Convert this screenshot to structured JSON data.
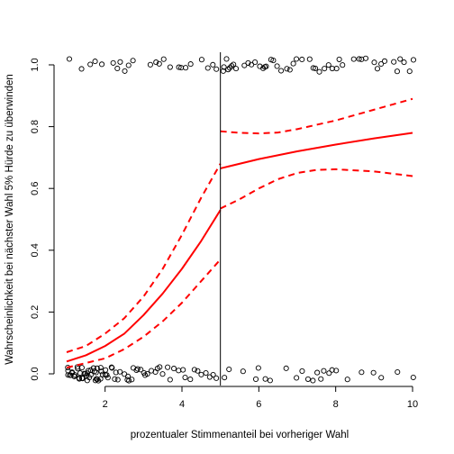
{
  "chart_data": {
    "type": "line",
    "title": "",
    "xlabel": "prozentualer Stimmenanteil bei vorheriger Wahl",
    "ylabel": "Wahrscheinlichkeit bei nächster Wahl 5% Hürde zu überwinden",
    "xlim": [
      1,
      10
    ],
    "ylim": [
      0,
      1
    ],
    "x_ticks": [
      2,
      4,
      6,
      8,
      10
    ],
    "y_ticks": [
      0.0,
      0.2,
      0.4,
      0.6,
      0.8,
      1.0
    ],
    "y_tick_labels": [
      "0.0",
      "0.2",
      "0.4",
      "0.6",
      "0.8",
      "1.0"
    ],
    "threshold_x": 5,
    "grid": false,
    "series": [
      {
        "role": "fit-left",
        "style": "solid",
        "color": "#ff0000",
        "x": [
          1.0,
          1.5,
          2.0,
          2.5,
          3.0,
          3.5,
          4.0,
          4.5,
          5.0
        ],
        "y": [
          0.04,
          0.06,
          0.09,
          0.13,
          0.19,
          0.26,
          0.34,
          0.43,
          0.53
        ]
      },
      {
        "role": "ci-upper-left",
        "style": "dashed",
        "color": "#ff0000",
        "x": [
          1.0,
          1.5,
          2.0,
          2.5,
          3.0,
          3.5,
          4.0,
          4.5,
          5.0
        ],
        "y": [
          0.07,
          0.09,
          0.13,
          0.18,
          0.25,
          0.34,
          0.45,
          0.57,
          0.68
        ]
      },
      {
        "role": "ci-lower-left",
        "style": "dashed",
        "color": "#ff0000",
        "x": [
          1.0,
          1.5,
          2.0,
          2.5,
          3.0,
          3.5,
          4.0,
          4.5,
          5.0
        ],
        "y": [
          0.02,
          0.035,
          0.05,
          0.08,
          0.12,
          0.17,
          0.23,
          0.3,
          0.37
        ]
      },
      {
        "role": "fit-right",
        "style": "solid",
        "color": "#ff0000",
        "x": [
          5.0,
          6.0,
          7.0,
          8.0,
          9.0,
          10.0
        ],
        "y": [
          0.665,
          0.695,
          0.72,
          0.742,
          0.762,
          0.78
        ]
      },
      {
        "role": "ci-upper-right",
        "style": "dashed",
        "color": "#ff0000",
        "x": [
          5.0,
          5.5,
          6.0,
          6.5,
          7.0,
          8.0,
          9.0,
          10.0
        ],
        "y": [
          0.785,
          0.78,
          0.778,
          0.781,
          0.792,
          0.82,
          0.855,
          0.89
        ]
      },
      {
        "role": "ci-lower-right",
        "style": "dashed",
        "color": "#ff0000",
        "x": [
          5.0,
          5.5,
          6.0,
          6.5,
          7.0,
          7.5,
          8.0,
          9.0,
          10.0
        ],
        "y": [
          0.535,
          0.565,
          0.6,
          0.63,
          0.65,
          0.66,
          0.662,
          0.655,
          0.64
        ]
      }
    ],
    "points": {
      "marker": "open-circle",
      "outcome_1": {
        "y": 1,
        "x": [
          1.1,
          1.4,
          1.6,
          1.75,
          1.9,
          2.2,
          2.3,
          2.4,
          2.5,
          2.6,
          2.7,
          3.2,
          3.3,
          3.4,
          3.5,
          3.7,
          3.9,
          4.0,
          4.1,
          4.2,
          4.5,
          4.7,
          4.8,
          4.9,
          5.05,
          5.1,
          5.15,
          5.2,
          5.25,
          5.3,
          5.35,
          5.4,
          5.6,
          5.7,
          5.8,
          5.9,
          6.0,
          6.1,
          6.15,
          6.2,
          6.3,
          6.4,
          6.5,
          6.6,
          6.7,
          6.8,
          6.9,
          7.0,
          7.1,
          7.3,
          7.4,
          7.5,
          7.6,
          7.7,
          7.8,
          7.9,
          8.0,
          8.1,
          8.2,
          8.5,
          8.6,
          8.7,
          8.8,
          9.0,
          9.1,
          9.2,
          9.3,
          9.5,
          9.6,
          9.7,
          9.8,
          9.9,
          10.0
        ]
      },
      "outcome_0": {
        "y": 0,
        "x": [
          1.0,
          1.02,
          1.05,
          1.08,
          1.1,
          1.12,
          1.15,
          1.18,
          1.2,
          1.22,
          1.25,
          1.28,
          1.3,
          1.32,
          1.35,
          1.38,
          1.4,
          1.42,
          1.45,
          1.48,
          1.5,
          1.52,
          1.55,
          1.58,
          1.6,
          1.62,
          1.65,
          1.68,
          1.7,
          1.72,
          1.75,
          1.78,
          1.8,
          1.82,
          1.85,
          1.88,
          1.9,
          1.92,
          1.95,
          1.98,
          2.0,
          2.05,
          2.1,
          2.15,
          2.2,
          2.25,
          2.3,
          2.35,
          2.4,
          2.5,
          2.55,
          2.6,
          2.65,
          2.7,
          2.75,
          2.8,
          2.85,
          2.9,
          3.0,
          3.05,
          3.1,
          3.2,
          3.3,
          3.35,
          3.4,
          3.5,
          3.6,
          3.7,
          3.8,
          3.9,
          4.0,
          4.1,
          4.2,
          4.3,
          4.4,
          4.5,
          4.6,
          4.7,
          4.8,
          4.9,
          5.1,
          5.2,
          5.6,
          5.9,
          6.0,
          6.2,
          6.3,
          6.7,
          7.0,
          7.1,
          7.3,
          7.4,
          7.5,
          7.6,
          7.7,
          7.8,
          7.9,
          8.0,
          8.3,
          8.7,
          9.0,
          9.2,
          9.6,
          10.0
        ]
      }
    }
  }
}
